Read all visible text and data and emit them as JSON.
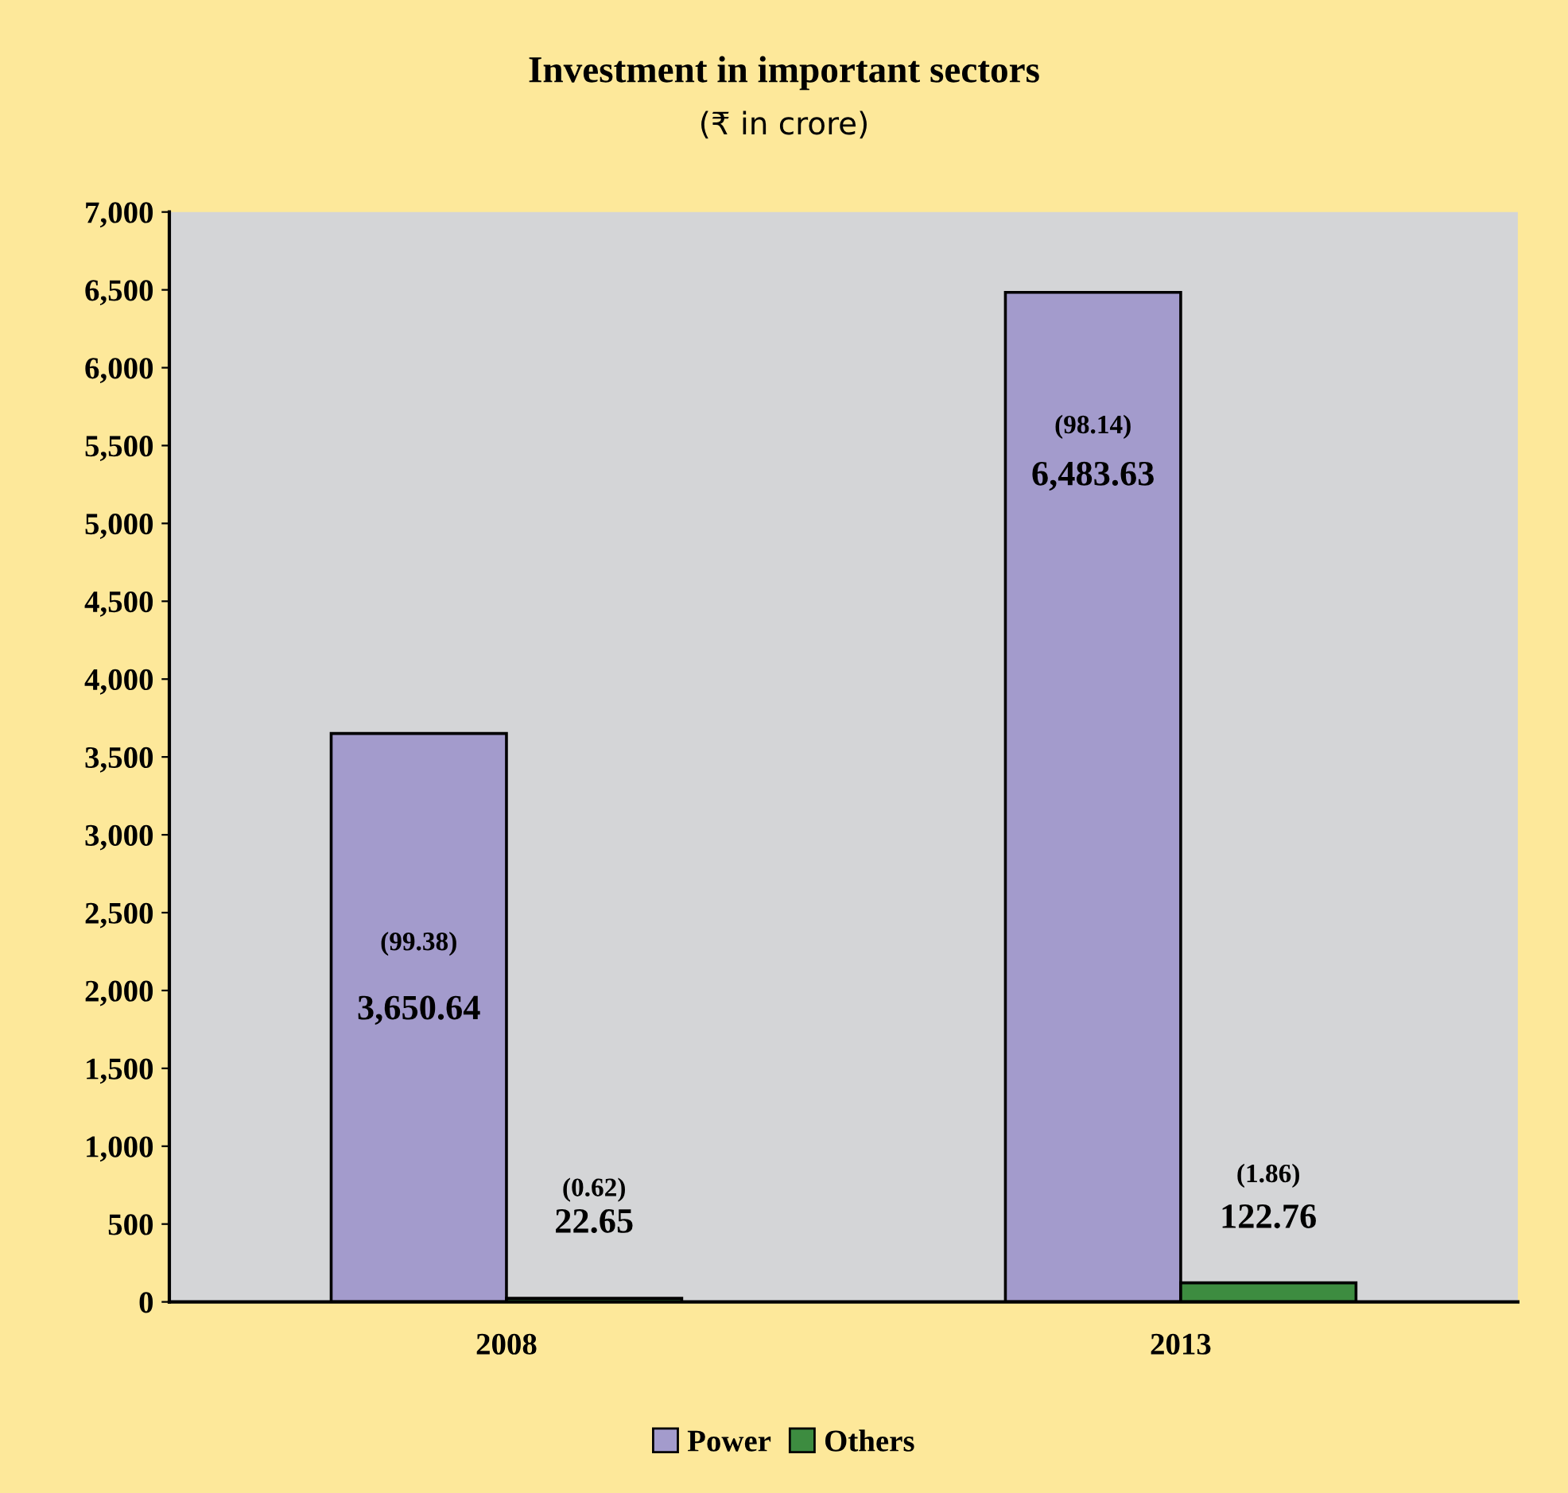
{
  "chart_data": {
    "type": "bar",
    "title": "Investment in important sectors",
    "subtitle": "(₹ in crore)",
    "categories": [
      "2008",
      "2013"
    ],
    "series": [
      {
        "name": "Power",
        "color": "#a39bcc",
        "values": [
          3650.64,
          6483.63
        ]
      },
      {
        "name": "Others",
        "color": "#3d8c40",
        "values": [
          22.65,
          122.76
        ]
      }
    ],
    "ylim": [
      0,
      7000
    ],
    "yticks": [
      0,
      500,
      {
        "value": 1000,
        "label": "1,000"
      },
      {
        "value": 1500,
        "label": "1,500"
      },
      {
        "value": 2000,
        "label": "2,000"
      },
      {
        "value": 2500,
        "label": "2,500"
      },
      {
        "value": 3000,
        "label": "3,000"
      },
      {
        "value": 3500,
        "label": "3,500"
      },
      {
        "value": 4000,
        "label": "4,000"
      },
      {
        "value": 4500,
        "label": "4,500"
      },
      {
        "value": 5000,
        "label": "5,000"
      },
      {
        "value": 5500,
        "label": "5,500"
      },
      {
        "value": 6000,
        "label": "6,000"
      },
      {
        "value": 6500,
        "label": "6,500"
      },
      {
        "value": 7000,
        "label": "7,000"
      }
    ],
    "annotations": [
      {
        "text": "(99.38)",
        "x": "2008",
        "y": 2300
      },
      {
        "text": "3,650.64",
        "x": "2008",
        "y": 1870
      },
      {
        "text": "(0.62)",
        "x": "2008",
        "y": 720
      },
      {
        "text": "22.65",
        "x": "2008",
        "y": 500
      },
      {
        "text": "(98.14)",
        "x": "2013",
        "y": 5620
      },
      {
        "text": "6,483.63",
        "x": "2013",
        "y": 5300
      },
      {
        "text": "(1.86)",
        "x": "2013",
        "y": 810
      },
      {
        "text": "122.76",
        "x": "2013",
        "y": 530
      }
    ],
    "grid": false,
    "legend": "bottom"
  }
}
